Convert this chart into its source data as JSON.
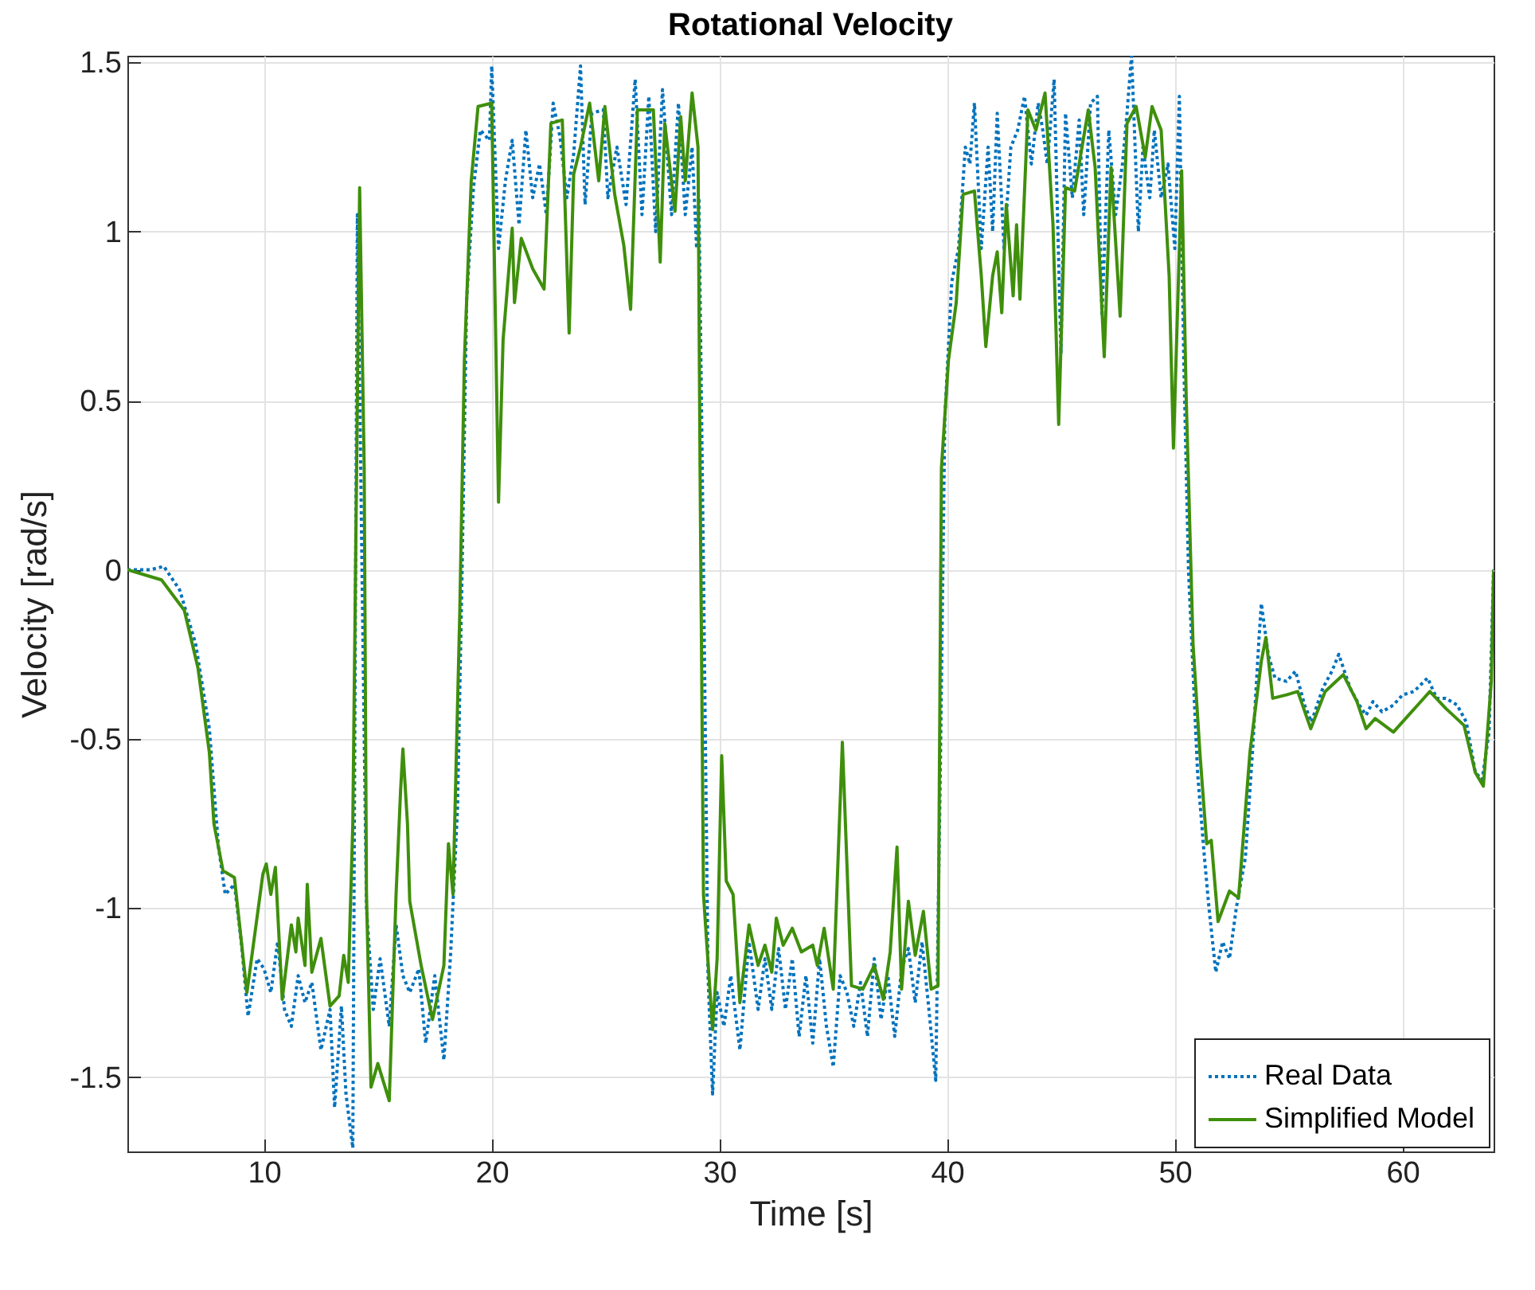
{
  "chart_data": {
    "type": "line",
    "title": "Rotational Velocity",
    "xlabel": "Time [s]",
    "ylabel": "Velocity [rad/s]",
    "xlim": [
      4,
      64
    ],
    "xticks": [
      10,
      20,
      30,
      40,
      50,
      60
    ],
    "ylim": [
      -1.72,
      1.52
    ],
    "yticks": [
      -1.5,
      -1,
      -0.5,
      0,
      0.5,
      1,
      1.5
    ],
    "grid": true,
    "legend": "bottom right",
    "marker": "none",
    "series": [
      {
        "name": "Real Data",
        "color": "#0072bd",
        "line_style": "dotted",
        "x": [
          4,
          5,
          5.6,
          6.3,
          7,
          7.6,
          8,
          8.3,
          8.7,
          9,
          9.3,
          9.7,
          10,
          10.3,
          10.6,
          10.9,
          11.2,
          11.5,
          11.8,
          12.1,
          12.5,
          12.9,
          13.1,
          13.4,
          13.6,
          13.9,
          14.1,
          14.5,
          14.8,
          15.1,
          15.5,
          15.8,
          16.1,
          16.4,
          16.8,
          17.1,
          17.5,
          17.9,
          18.2,
          18.5,
          18.7,
          18.9,
          19.2,
          19.5,
          19.9,
          20,
          20.3,
          20.6,
          20.9,
          21.2,
          21.5,
          21.8,
          22.1,
          22.4,
          22.7,
          23,
          23.3,
          23.6,
          23.9,
          24.1,
          24.4,
          24.9,
          25.1,
          25.5,
          25.9,
          26.3,
          26.6,
          26.9,
          27.2,
          27.5,
          27.9,
          28.2,
          28.5,
          28.8,
          29,
          29.1,
          29.3,
          29.5,
          29.7,
          29.9,
          30.2,
          30.5,
          30.9,
          31.3,
          31.7,
          32,
          32.3,
          32.6,
          32.9,
          33.2,
          33.5,
          33.8,
          34.1,
          34.4,
          34.7,
          35,
          35.3,
          35.6,
          35.9,
          36.2,
          36.5,
          36.8,
          37.1,
          37.4,
          37.7,
          38,
          38.3,
          38.6,
          38.9,
          39.2,
          39.5,
          39.7,
          39.9,
          40.2,
          40.5,
          40.8,
          41,
          41.2,
          41.5,
          41.8,
          42,
          42.2,
          42.5,
          42.8,
          43.1,
          43.4,
          43.7,
          44,
          44.2,
          44.4,
          44.7,
          45,
          45.2,
          45.5,
          45.8,
          46,
          46.3,
          46.6,
          46.8,
          47.1,
          47.4,
          47.7,
          47.9,
          48.1,
          48.4,
          48.6,
          48.9,
          49.1,
          49.4,
          49.7,
          50,
          50.2,
          50.4,
          50.6,
          51,
          51.3,
          51.5,
          51.8,
          52.1,
          52.4,
          52.7,
          53.1,
          53.4,
          53.7,
          53.8,
          54.1,
          54.4,
          54.9,
          55.3,
          55.7,
          56,
          56.5,
          56.9,
          57.2,
          57.7,
          58.1,
          58.4,
          58.7,
          59.1,
          59.6,
          60,
          60.5,
          61.1,
          61.5,
          61.9,
          62.4,
          62.8,
          63.2,
          63.5,
          63.8,
          64
        ],
        "values": [
          0,
          0,
          0.01,
          -0.06,
          -0.22,
          -0.47,
          -0.82,
          -0.96,
          -0.93,
          -1.1,
          -1.32,
          -1.15,
          -1.18,
          -1.25,
          -1.1,
          -1.3,
          -1.35,
          -1.2,
          -1.28,
          -1.22,
          -1.42,
          -1.3,
          -1.59,
          -1.29,
          -1.55,
          -1.71,
          1.05,
          -1,
          -1.3,
          -1.15,
          -1.35,
          -1.05,
          -1.2,
          -1.25,
          -1.18,
          -1.4,
          -1.2,
          -1.45,
          -1.13,
          -0.7,
          0,
          0.8,
          1.13,
          1.3,
          1.27,
          1.49,
          0.95,
          1.15,
          1.27,
          1.02,
          1.3,
          1.1,
          1.2,
          1.05,
          1.38,
          1.28,
          1.1,
          1.23,
          1.49,
          1.08,
          1.35,
          1.36,
          1.1,
          1.25,
          1.08,
          1.45,
          1.05,
          1.4,
          1,
          1.42,
          1.05,
          1.38,
          1.05,
          1.25,
          0.95,
          1.1,
          0,
          -1.2,
          -1.55,
          -1.25,
          -1.35,
          -1.2,
          -1.42,
          -1.1,
          -1.3,
          -1.15,
          -1.3,
          -1.12,
          -1.3,
          -1.15,
          -1.38,
          -1.2,
          -1.4,
          -1.15,
          -1.35,
          -1.47,
          -1.2,
          -1.25,
          -1.35,
          -1.22,
          -1.38,
          -1.15,
          -1.33,
          -1.2,
          -1.38,
          -1.18,
          -1.12,
          -1.28,
          -1.1,
          -1.3,
          -1.51,
          -0.6,
          0.45,
          0.85,
          0.95,
          1.25,
          1.2,
          1.38,
          0.95,
          1.25,
          1,
          1.35,
          0.95,
          1.25,
          1.3,
          1.4,
          1.2,
          1.38,
          1.3,
          1.2,
          1.45,
          0.64,
          1.35,
          1.1,
          1.33,
          1.05,
          1.38,
          1.4,
          0.75,
          1.3,
          1.05,
          1.2,
          1.35,
          1.52,
          1,
          1.25,
          1.1,
          1.3,
          1.1,
          1.2,
          0.95,
          1.4,
          0.6,
          0,
          -0.6,
          -0.85,
          -1,
          -1.19,
          -1.1,
          -1.15,
          -1,
          -0.85,
          -0.55,
          -0.2,
          -0.1,
          -0.25,
          -0.32,
          -0.33,
          -0.3,
          -0.4,
          -0.45,
          -0.35,
          -0.3,
          -0.25,
          -0.35,
          -0.4,
          -0.43,
          -0.39,
          -0.42,
          -0.4,
          -0.37,
          -0.36,
          -0.32,
          -0.38,
          -0.38,
          -0.4,
          -0.45,
          -0.6,
          -0.62,
          -0.48,
          0
        ]
      },
      {
        "name": "Simplified Model",
        "color": "#3f8f0c",
        "line_style": "solid",
        "x": [
          4,
          5.5,
          6.5,
          7.1,
          7.6,
          7.8,
          8.2,
          8.7,
          9.25,
          9.95,
          10.1,
          10.3,
          10.5,
          10.8,
          11.2,
          11.4,
          11.5,
          11.8,
          11.9,
          12.1,
          12.5,
          12.9,
          13.3,
          13.5,
          13.7,
          13.9,
          14.2,
          14.4,
          14.5,
          14.7,
          15,
          15.5,
          15.8,
          16,
          16.1,
          16.3,
          16.4,
          16.9,
          17.4,
          17.9,
          18.1,
          18.3,
          18.6,
          18.8,
          19.1,
          19.4,
          20,
          20.3,
          20.5,
          20.9,
          21,
          21.3,
          21.8,
          22.3,
          22.6,
          23.1,
          23.4,
          23.6,
          23.9,
          24.3,
          24.7,
          24.97,
          25.4,
          25.8,
          26.1,
          26.4,
          27.1,
          27.4,
          27.6,
          28.05,
          28.3,
          28.5,
          28.8,
          29.06,
          29.15,
          29.3,
          29.7,
          29.9,
          30.1,
          30.3,
          30.6,
          30.9,
          31.3,
          31.7,
          32,
          32.3,
          32.5,
          32.8,
          33.2,
          33.6,
          34.1,
          34.3,
          34.6,
          35,
          35.4,
          35.8,
          36.3,
          36.8,
          37.2,
          37.5,
          37.8,
          38,
          38.3,
          38.6,
          38.96,
          39.3,
          39.6,
          39.75,
          40.06,
          40.4,
          40.7,
          41.2,
          41.5,
          41.7,
          42,
          42.2,
          42.4,
          42.6,
          42.9,
          43.05,
          43.2,
          43.55,
          43.9,
          44.3,
          44.65,
          44.9,
          45.2,
          45.6,
          46.2,
          46.5,
          46.9,
          47.2,
          47.6,
          47.9,
          48.3,
          48.7,
          49,
          49.4,
          49.75,
          49.94,
          50.3,
          50.5,
          50.8,
          51.1,
          51.4,
          51.6,
          51.9,
          52.4,
          52.8,
          53.3,
          53.8,
          54,
          54.3,
          54.9,
          55.4,
          55.97,
          56.6,
          57.4,
          58,
          58.4,
          58.8,
          59.6,
          60.4,
          61.2,
          61.9,
          62.7,
          63.2,
          63.55,
          63.9,
          64
        ],
        "values": [
          0,
          -0.03,
          -0.12,
          -0.29,
          -0.54,
          -0.75,
          -0.89,
          -0.91,
          -1.25,
          -0.9,
          -0.87,
          -0.96,
          -0.88,
          -1.27,
          -1.05,
          -1.13,
          -1.03,
          -1.17,
          -0.93,
          -1.19,
          -1.09,
          -1.29,
          -1.26,
          -1.14,
          -1.22,
          -0.75,
          1.13,
          0.3,
          -0.96,
          -1.53,
          -1.46,
          -1.57,
          -0.96,
          -0.65,
          -0.53,
          -0.75,
          -0.98,
          -1.17,
          -1.33,
          -1.17,
          -0.81,
          -0.96,
          -0.12,
          0.62,
          1.15,
          1.37,
          1.38,
          0.2,
          0.68,
          1.01,
          0.79,
          0.98,
          0.89,
          0.83,
          1.32,
          1.33,
          0.7,
          1.17,
          1.25,
          1.38,
          1.15,
          1.37,
          1.11,
          0.96,
          0.77,
          1.36,
          1.36,
          0.91,
          1.32,
          1.06,
          1.34,
          1.15,
          1.41,
          1.25,
          0.3,
          -0.96,
          -1.36,
          -1.15,
          -0.55,
          -0.92,
          -0.96,
          -1.28,
          -1.05,
          -1.17,
          -1.11,
          -1.19,
          -1.03,
          -1.11,
          -1.06,
          -1.13,
          -1.11,
          -1.17,
          -1.06,
          -1.24,
          -0.51,
          -1.23,
          -1.24,
          -1.17,
          -1.27,
          -1.13,
          -0.82,
          -1.24,
          -0.98,
          -1.14,
          -1.01,
          -1.24,
          -1.23,
          0.3,
          0.62,
          0.79,
          1.11,
          1.12,
          0.87,
          0.66,
          0.87,
          0.94,
          0.76,
          1.08,
          0.81,
          1.02,
          0.8,
          1.36,
          1.3,
          1.41,
          1.02,
          0.43,
          1.13,
          1.12,
          1.36,
          1.19,
          0.63,
          1.19,
          0.75,
          1.32,
          1.37,
          1.22,
          1.37,
          1.3,
          0.87,
          0.36,
          1.18,
          0.51,
          -0.22,
          -0.54,
          -0.81,
          -0.8,
          -1.04,
          -0.95,
          -0.97,
          -0.54,
          -0.27,
          -0.2,
          -0.38,
          -0.37,
          -0.36,
          -0.47,
          -0.36,
          -0.31,
          -0.39,
          -0.47,
          -0.44,
          -0.48,
          -0.42,
          -0.36,
          -0.41,
          -0.46,
          -0.6,
          -0.64,
          -0.33,
          0
        ]
      }
    ]
  }
}
